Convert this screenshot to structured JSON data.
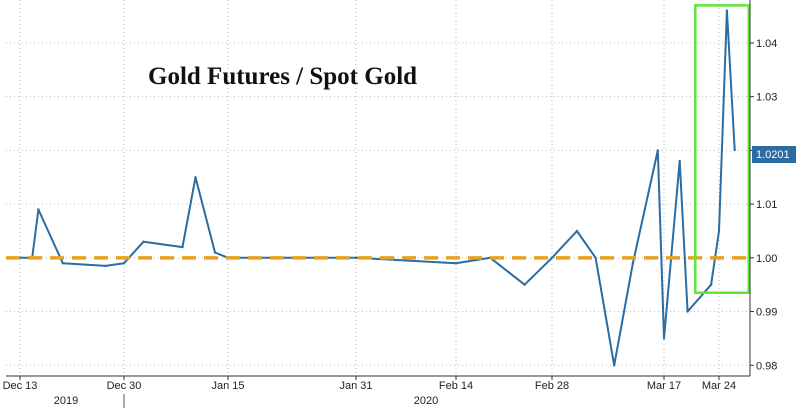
{
  "chart_data": {
    "type": "line",
    "title": "Gold Futures / Spot Gold",
    "xlabel": "",
    "ylabel": "",
    "ylim": [
      0.978,
      1.048
    ],
    "y_ticks": [
      "0.98",
      "0.99",
      "1.00",
      "1.01",
      "1.02",
      "1.03",
      "1.04"
    ],
    "x_ticks": [
      "Dec 13",
      "Dec 30",
      "Jan 15",
      "Jan 31",
      "Feb 14",
      "Feb 28",
      "Mar 17",
      "Mar 24"
    ],
    "year_labels": [
      "2019",
      "2020"
    ],
    "last_value_label": "1.0201",
    "reference_line": {
      "y": 1.0,
      "style": "dashed",
      "color": "#e8a21f"
    },
    "highlight_box": {
      "x_range": [
        "Mar 22",
        "Mar 26"
      ],
      "y_range": [
        0.9935,
        1.047
      ],
      "color": "#5ee63b"
    },
    "series": [
      {
        "color": "#2b6ca3",
        "points": [
          [
            "Dec 13",
            1.0
          ],
          [
            "Dec 15",
            1.0
          ],
          [
            "Dec 16",
            1.009
          ],
          [
            "Dec 20",
            0.999
          ],
          [
            "Dec 27",
            0.9985
          ],
          [
            "Dec 30",
            0.999
          ],
          [
            "Jan 2",
            1.003
          ],
          [
            "Jan 8",
            1.002
          ],
          [
            "Jan 10",
            1.015
          ],
          [
            "Jan 13",
            1.001
          ],
          [
            "Jan 15",
            1.0
          ],
          [
            "Jan 22",
            1.0
          ],
          [
            "Jan 27",
            1.0
          ],
          [
            "Jan 31",
            1.0
          ],
          [
            "Feb 7",
            0.9995
          ],
          [
            "Feb 14",
            0.999
          ],
          [
            "Feb 19",
            1.0
          ],
          [
            "Feb 24",
            0.995
          ],
          [
            "Feb 28",
            1.0
          ],
          [
            "Mar 3",
            1.005
          ],
          [
            "Mar 6",
            1.0
          ],
          [
            "Mar 9",
            0.98
          ],
          [
            "Mar 12",
            0.999
          ],
          [
            "Mar 16",
            1.02
          ],
          [
            "Mar 17",
            0.985
          ],
          [
            "Mar 19",
            1.018
          ],
          [
            "Mar 20",
            0.99
          ],
          [
            "Mar 23",
            0.995
          ],
          [
            "Mar 24",
            1.005
          ],
          [
            "Mar 25",
            1.046
          ],
          [
            "Mar 26",
            1.0201
          ]
        ]
      }
    ],
    "grid": true,
    "y_axis_position": "right"
  }
}
